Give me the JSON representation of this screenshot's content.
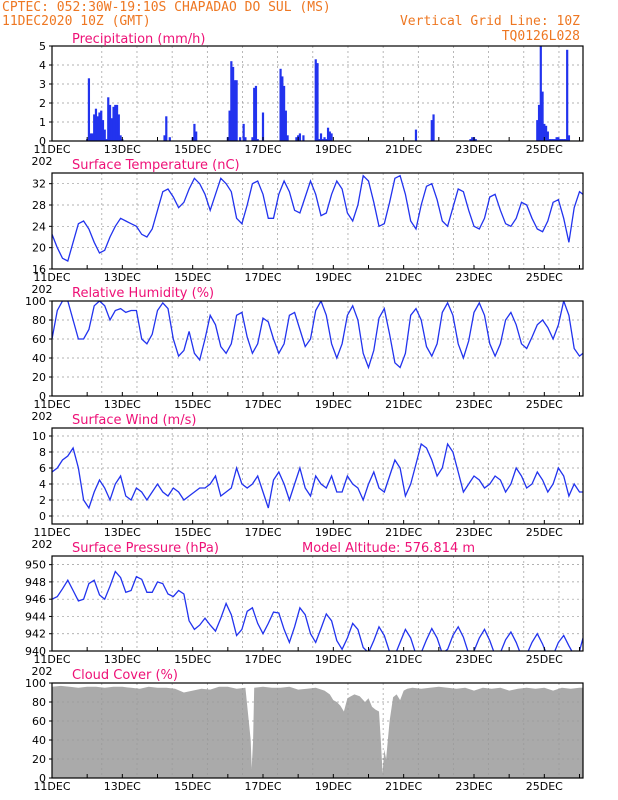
{
  "header": {
    "line1": "CPTEC:   052:30W-19:10S   CHAPADAO DO SUL (MS)",
    "line2_left": "11DEC2020 10Z (GMT)",
    "line2_right": "Vertical Grid Line: 10Z",
    "line3_right": "TQ0126L028",
    "year_clip": "202"
  },
  "x_tick_labels": [
    "11DEC",
    "13DEC",
    "15DEC",
    "17DEC",
    "19DEC",
    "21DEC",
    "23DEC",
    "25DEC"
  ],
  "colors": {
    "series": "#2233ee",
    "title": "#ee1177",
    "header": "#ee7722",
    "cloud": "#aaaaaa",
    "grid": "#999999"
  },
  "chart_data": [
    {
      "type": "bar",
      "title": "Precipitation (mm/h)",
      "xlim_days": [
        11,
        26.1
      ],
      "ylim": [
        0,
        5
      ],
      "yticks": [
        0,
        1,
        2,
        3,
        4,
        5
      ],
      "grid": true,
      "x": [
        12.0,
        12.05,
        12.1,
        12.15,
        12.2,
        12.25,
        12.3,
        12.35,
        12.4,
        12.45,
        12.5,
        12.55,
        12.6,
        12.65,
        12.7,
        12.75,
        12.8,
        12.85,
        12.9,
        12.95,
        13.0,
        14.2,
        14.25,
        14.35,
        15.0,
        15.05,
        15.1,
        16.0,
        16.05,
        16.1,
        16.15,
        16.2,
        16.25,
        16.35,
        16.45,
        16.5,
        16.7,
        16.75,
        16.8,
        16.85,
        17.0,
        17.5,
        17.55,
        17.6,
        17.65,
        17.7,
        17.95,
        18.0,
        18.05,
        18.15,
        18.5,
        18.55,
        18.6,
        18.65,
        18.7,
        18.75,
        18.8,
        18.85,
        18.9,
        18.95,
        21.35,
        21.8,
        21.85,
        22.9,
        22.95,
        23.0,
        23.05,
        24.8,
        24.85,
        24.9,
        24.95,
        25.0,
        25.05,
        25.1,
        25.15,
        25.2,
        25.25,
        25.3,
        25.35,
        25.4,
        25.45,
        25.5,
        25.55,
        25.6,
        25.65,
        25.7
      ],
      "values": [
        0.1,
        3.3,
        0.4,
        0.4,
        1.4,
        1.7,
        1.3,
        1.5,
        1.6,
        1.1,
        0.6,
        0.1,
        2.3,
        1.9,
        1.2,
        1.8,
        1.9,
        1.9,
        1.4,
        0.3,
        0.1,
        0.3,
        1.3,
        0.2,
        0.2,
        0.9,
        0.5,
        0.2,
        1.6,
        4.2,
        3.9,
        3.2,
        3.2,
        0.2,
        0.9,
        0.2,
        0.2,
        2.8,
        2.9,
        0.1,
        1.5,
        3.8,
        3.4,
        2.9,
        1.6,
        0.3,
        0.2,
        0.3,
        0.4,
        0.3,
        4.3,
        4.1,
        0.1,
        0.4,
        0.1,
        0.2,
        0.1,
        0.7,
        0.5,
        0.4,
        0.6,
        1.1,
        1.4,
        0.1,
        0.2,
        0.2,
        0.1,
        1.1,
        1.9,
        5.0,
        2.6,
        0.9,
        0.8,
        0.5,
        0.1,
        0.1,
        0.1,
        0.1,
        0.2,
        0.2,
        0.1,
        0.1,
        0.1,
        0.1,
        4.8,
        0.3
      ]
    },
    {
      "type": "line",
      "title": "Surface Temperature (nC)",
      "xlim_days": [
        11,
        26.1
      ],
      "ylim": [
        16,
        34
      ],
      "yticks": [
        16,
        20,
        24,
        28,
        32
      ],
      "grid": true,
      "x": [
        11.0,
        11.15,
        11.3,
        11.45,
        11.6,
        11.75,
        11.9,
        12.05,
        12.2,
        12.35,
        12.5,
        12.65,
        12.8,
        12.95,
        13.1,
        13.25,
        13.4,
        13.55,
        13.7,
        13.85,
        14.0,
        14.15,
        14.3,
        14.45,
        14.6,
        14.75,
        14.9,
        15.05,
        15.2,
        15.35,
        15.5,
        15.65,
        15.8,
        15.95,
        16.1,
        16.25,
        16.4,
        16.55,
        16.7,
        16.85,
        17.0,
        17.15,
        17.3,
        17.45,
        17.6,
        17.75,
        17.9,
        18.05,
        18.2,
        18.35,
        18.5,
        18.65,
        18.8,
        18.95,
        19.1,
        19.25,
        19.4,
        19.55,
        19.7,
        19.85,
        20.0,
        20.15,
        20.3,
        20.45,
        20.6,
        20.75,
        20.9,
        21.05,
        21.2,
        21.35,
        21.5,
        21.65,
        21.8,
        21.95,
        22.1,
        22.25,
        22.4,
        22.55,
        22.7,
        22.85,
        23.0,
        23.15,
        23.3,
        23.45,
        23.6,
        23.75,
        23.9,
        24.05,
        24.2,
        24.35,
        24.5,
        24.65,
        24.8,
        24.95,
        25.1,
        25.25,
        25.4,
        25.55,
        25.7,
        25.85,
        26.0,
        26.1
      ],
      "values": [
        22.5,
        20.0,
        18.0,
        17.5,
        21.0,
        24.5,
        25.0,
        23.5,
        21.0,
        19.0,
        19.5,
        22.0,
        24.0,
        25.5,
        25.0,
        24.5,
        24.0,
        22.5,
        22.0,
        23.5,
        27.0,
        30.5,
        31.0,
        29.5,
        27.5,
        28.5,
        31.0,
        33.0,
        32.0,
        30.0,
        27.0,
        30.0,
        33.0,
        32.0,
        30.5,
        25.5,
        24.5,
        28.0,
        32.0,
        32.5,
        30.0,
        25.5,
        25.5,
        30.0,
        32.5,
        30.5,
        27.0,
        26.5,
        29.5,
        32.5,
        30.0,
        26.0,
        26.5,
        30.0,
        32.5,
        31.0,
        26.5,
        25.0,
        28.0,
        33.5,
        32.5,
        28.5,
        24.0,
        24.5,
        28.5,
        33.0,
        33.5,
        30.0,
        25.0,
        23.5,
        28.0,
        31.5,
        32.0,
        29.0,
        25.0,
        24.0,
        27.5,
        31.0,
        30.5,
        27.0,
        24.0,
        23.5,
        25.5,
        29.5,
        30.0,
        27.0,
        24.5,
        24.0,
        25.5,
        28.5,
        28.0,
        25.5,
        23.5,
        23.0,
        25.0,
        28.5,
        29.0,
        25.5,
        21.0,
        27.5,
        30.5,
        30.0
      ]
    },
    {
      "type": "line",
      "title": "Relative Humidity (%)",
      "xlim_days": [
        11,
        26.1
      ],
      "ylim": [
        0,
        100
      ],
      "yticks": [
        0,
        20,
        40,
        60,
        80,
        100
      ],
      "grid": true,
      "x": [
        11.0,
        11.15,
        11.3,
        11.45,
        11.6,
        11.75,
        11.9,
        12.05,
        12.2,
        12.35,
        12.5,
        12.65,
        12.8,
        12.95,
        13.1,
        13.25,
        13.4,
        13.55,
        13.7,
        13.85,
        14.0,
        14.15,
        14.3,
        14.45,
        14.6,
        14.75,
        14.9,
        15.05,
        15.2,
        15.35,
        15.5,
        15.65,
        15.8,
        15.95,
        16.1,
        16.25,
        16.4,
        16.55,
        16.7,
        16.85,
        17.0,
        17.15,
        17.3,
        17.45,
        17.6,
        17.75,
        17.9,
        18.05,
        18.2,
        18.35,
        18.5,
        18.65,
        18.8,
        18.95,
        19.1,
        19.25,
        19.4,
        19.55,
        19.7,
        19.85,
        20.0,
        20.15,
        20.3,
        20.45,
        20.6,
        20.75,
        20.9,
        21.05,
        21.2,
        21.35,
        21.5,
        21.65,
        21.8,
        21.95,
        22.1,
        22.25,
        22.4,
        22.55,
        22.7,
        22.85,
        23.0,
        23.15,
        23.3,
        23.45,
        23.6,
        23.75,
        23.9,
        24.05,
        24.2,
        24.35,
        24.5,
        24.65,
        24.8,
        24.95,
        25.1,
        25.25,
        25.4,
        25.55,
        25.7,
        25.85,
        26.0,
        26.1
      ],
      "values": [
        60,
        90,
        100,
        100,
        80,
        60,
        60,
        70,
        95,
        100,
        95,
        80,
        90,
        92,
        88,
        90,
        90,
        60,
        55,
        65,
        90,
        98,
        92,
        60,
        42,
        48,
        68,
        45,
        38,
        60,
        85,
        75,
        52,
        45,
        55,
        85,
        88,
        62,
        45,
        55,
        82,
        78,
        60,
        45,
        55,
        85,
        88,
        70,
        52,
        60,
        90,
        100,
        85,
        55,
        40,
        55,
        85,
        95,
        80,
        45,
        30,
        48,
        82,
        92,
        65,
        35,
        30,
        45,
        85,
        92,
        80,
        52,
        42,
        55,
        88,
        98,
        85,
        55,
        40,
        58,
        88,
        98,
        85,
        55,
        42,
        55,
        80,
        88,
        75,
        55,
        50,
        62,
        75,
        80,
        72,
        60,
        75,
        100,
        85,
        50,
        42,
        45
      ]
    },
    {
      "type": "line",
      "title": "Surface Wind (m/s)",
      "xlim_days": [
        11,
        26.1
      ],
      "ylim": [
        -1,
        11
      ],
      "yticks": [
        0,
        2,
        4,
        6,
        8,
        10
      ],
      "grid": true,
      "x": [
        11.0,
        11.15,
        11.3,
        11.45,
        11.6,
        11.75,
        11.9,
        12.05,
        12.2,
        12.35,
        12.5,
        12.65,
        12.8,
        12.95,
        13.1,
        13.25,
        13.4,
        13.55,
        13.7,
        13.85,
        14.0,
        14.15,
        14.3,
        14.45,
        14.6,
        14.75,
        14.9,
        15.05,
        15.2,
        15.35,
        15.5,
        15.65,
        15.8,
        15.95,
        16.1,
        16.25,
        16.4,
        16.55,
        16.7,
        16.85,
        17.0,
        17.15,
        17.3,
        17.45,
        17.6,
        17.75,
        17.9,
        18.05,
        18.2,
        18.35,
        18.5,
        18.65,
        18.8,
        18.95,
        19.1,
        19.25,
        19.4,
        19.55,
        19.7,
        19.85,
        20.0,
        20.15,
        20.3,
        20.45,
        20.6,
        20.75,
        20.9,
        21.05,
        21.2,
        21.35,
        21.5,
        21.65,
        21.8,
        21.95,
        22.1,
        22.25,
        22.4,
        22.55,
        22.7,
        22.85,
        23.0,
        23.15,
        23.3,
        23.45,
        23.6,
        23.75,
        23.9,
        24.05,
        24.2,
        24.35,
        24.5,
        24.65,
        24.8,
        24.95,
        25.1,
        25.25,
        25.4,
        25.55,
        25.7,
        25.85,
        26.0,
        26.1
      ],
      "values": [
        5.5,
        6.0,
        7.0,
        7.5,
        8.5,
        6.0,
        2.0,
        1.0,
        3.0,
        4.5,
        3.5,
        2.0,
        4.0,
        5.0,
        2.5,
        2.0,
        3.5,
        3.0,
        2.0,
        3.0,
        4.0,
        3.0,
        2.5,
        3.5,
        3.0,
        2.0,
        2.5,
        3.0,
        3.5,
        3.5,
        4.0,
        5.0,
        2.5,
        3.0,
        3.5,
        6.0,
        4.0,
        3.5,
        4.0,
        5.0,
        3.0,
        1.0,
        4.5,
        5.5,
        4.0,
        2.0,
        4.0,
        6.0,
        3.5,
        2.5,
        5.0,
        4.0,
        3.5,
        5.0,
        3.0,
        3.0,
        5.0,
        4.0,
        3.5,
        2.0,
        4.0,
        5.5,
        3.5,
        3.0,
        5.0,
        7.0,
        6.0,
        2.5,
        4.0,
        6.5,
        9.0,
        8.5,
        7.0,
        5.0,
        6.0,
        9.0,
        8.0,
        5.5,
        3.0,
        4.0,
        5.0,
        4.5,
        3.5,
        4.0,
        5.0,
        4.5,
        3.0,
        4.0,
        6.0,
        5.0,
        3.5,
        4.0,
        5.5,
        4.5,
        3.0,
        4.0,
        6.0,
        5.0,
        2.5,
        4.0,
        3.0,
        3.0
      ]
    },
    {
      "type": "line",
      "title": "Surface Pressure (hPa)",
      "annotation": "Model Altitude: 576.814 m",
      "xlim_days": [
        11,
        26.1
      ],
      "ylim": [
        940,
        951
      ],
      "yticks": [
        940,
        942,
        944,
        946,
        948,
        950
      ],
      "grid": true,
      "x": [
        11.0,
        11.15,
        11.3,
        11.45,
        11.6,
        11.75,
        11.9,
        12.05,
        12.2,
        12.35,
        12.5,
        12.65,
        12.8,
        12.95,
        13.1,
        13.25,
        13.4,
        13.55,
        13.7,
        13.85,
        14.0,
        14.15,
        14.3,
        14.45,
        14.6,
        14.75,
        14.9,
        15.05,
        15.2,
        15.35,
        15.5,
        15.65,
        15.8,
        15.95,
        16.1,
        16.25,
        16.4,
        16.55,
        16.7,
        16.85,
        17.0,
        17.15,
        17.3,
        17.45,
        17.6,
        17.75,
        17.9,
        18.05,
        18.2,
        18.35,
        18.5,
        18.65,
        18.8,
        18.95,
        19.1,
        19.25,
        19.4,
        19.55,
        19.7,
        19.85,
        20.0,
        20.15,
        20.3,
        20.45,
        20.6,
        20.75,
        20.9,
        21.05,
        21.2,
        21.35,
        21.5,
        21.65,
        21.8,
        21.95,
        22.1,
        22.25,
        22.4,
        22.55,
        22.7,
        22.85,
        23.0,
        23.15,
        23.3,
        23.45,
        23.6,
        23.75,
        23.9,
        24.05,
        24.2,
        24.35,
        24.5,
        24.65,
        24.8,
        24.95,
        25.1,
        25.25,
        25.4,
        25.55,
        25.7,
        25.85,
        26.0,
        26.1
      ],
      "values": [
        946.0,
        946.3,
        947.2,
        948.2,
        947.0,
        945.8,
        946.0,
        947.8,
        948.2,
        946.5,
        946.0,
        947.5,
        949.2,
        948.5,
        946.8,
        947.0,
        948.6,
        948.3,
        946.8,
        946.8,
        948.0,
        947.8,
        946.6,
        946.3,
        947.0,
        946.6,
        943.5,
        942.5,
        943.0,
        943.8,
        943.0,
        942.3,
        943.8,
        945.5,
        944.2,
        941.8,
        942.5,
        944.6,
        945.0,
        943.2,
        942.0,
        943.2,
        944.5,
        944.4,
        942.5,
        941.0,
        942.8,
        945.0,
        944.2,
        942.0,
        941.0,
        942.6,
        944.3,
        943.5,
        941.2,
        940.2,
        941.5,
        943.2,
        942.5,
        940.4,
        939.8,
        941.2,
        942.8,
        941.8,
        939.9,
        939.5,
        941.0,
        942.5,
        941.5,
        939.6,
        939.8,
        941.3,
        942.6,
        941.5,
        939.7,
        940.2,
        941.8,
        942.8,
        941.6,
        939.7,
        940.0,
        941.5,
        942.5,
        941.2,
        939.5,
        939.8,
        941.3,
        942.2,
        941.0,
        939.4,
        939.6,
        941.0,
        942.0,
        940.8,
        939.3,
        939.5,
        941.0,
        941.8,
        940.6,
        939.5,
        940.0,
        941.5
      ]
    },
    {
      "type": "area",
      "title": "Cloud Cover (%)",
      "xlim_days": [
        11,
        26.1
      ],
      "ylim": [
        0,
        100
      ],
      "yticks": [
        0,
        20,
        40,
        60,
        80,
        100
      ],
      "grid": true,
      "x": [
        11.0,
        11.25,
        11.5,
        11.75,
        12.0,
        12.25,
        12.5,
        12.75,
        13.0,
        13.25,
        13.5,
        13.75,
        14.0,
        14.25,
        14.5,
        14.75,
        15.0,
        15.25,
        15.5,
        15.75,
        16.0,
        16.25,
        16.5,
        16.65,
        16.68,
        16.72,
        16.75,
        17.0,
        17.25,
        17.5,
        17.75,
        18.0,
        18.25,
        18.5,
        18.75,
        18.9,
        19.0,
        19.1,
        19.2,
        19.3,
        19.4,
        19.5,
        19.6,
        19.75,
        19.9,
        20.0,
        20.1,
        20.2,
        20.3,
        20.35,
        20.4,
        20.45,
        20.5,
        20.6,
        20.7,
        20.8,
        20.9,
        21.0,
        21.1,
        21.25,
        21.5,
        21.75,
        22.0,
        22.25,
        22.5,
        22.75,
        23.0,
        23.25,
        23.5,
        23.75,
        24.0,
        24.25,
        24.5,
        24.75,
        25.0,
        25.25,
        25.5,
        25.75,
        26.0,
        26.1
      ],
      "values": [
        96,
        97,
        96,
        95,
        96,
        96,
        95,
        96,
        96,
        95,
        94,
        96,
        95,
        95,
        94,
        90,
        92,
        94,
        93,
        96,
        96,
        94,
        95,
        40,
        10,
        40,
        95,
        96,
        95,
        95,
        96,
        93,
        94,
        95,
        92,
        88,
        82,
        80,
        76,
        70,
        84,
        86,
        88,
        86,
        80,
        84,
        75,
        72,
        70,
        40,
        5,
        30,
        20,
        60,
        85,
        88,
        82,
        92,
        94,
        95,
        94,
        95,
        96,
        95,
        94,
        95,
        92,
        95,
        94,
        95,
        92,
        94,
        95,
        94,
        95,
        92,
        95,
        94,
        95,
        95
      ]
    }
  ]
}
